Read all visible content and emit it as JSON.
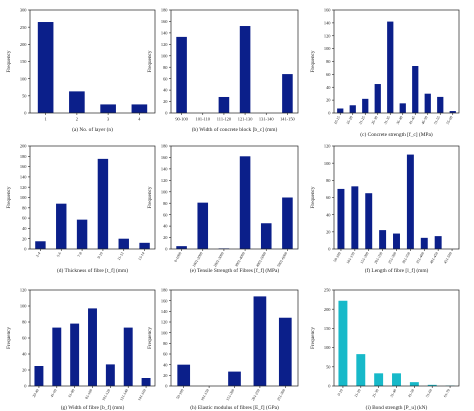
{
  "chart_data": [
    {
      "type": "bar",
      "caption": "(a) No. of layer (n)",
      "ylabel": "Frequency",
      "categories": [
        "1",
        "2",
        "3",
        "4"
      ],
      "values": [
        265,
        63,
        25,
        25
      ],
      "ylim": [
        0,
        300
      ],
      "yticks": [
        0,
        50,
        100,
        150,
        200,
        250,
        300
      ],
      "bar_color": "#0b1f8a",
      "rotate_x_labels": false
    },
    {
      "type": "bar",
      "caption": "(b) Width of concrete block [b_c] (mm)",
      "ylabel": "Frequency",
      "categories": [
        "90-100",
        "101-110",
        "111-120",
        "121-130",
        "131-140",
        "141-150"
      ],
      "values": [
        133,
        0,
        28,
        152,
        0,
        68
      ],
      "ylim": [
        0,
        180
      ],
      "yticks": [
        0,
        20,
        40,
        60,
        80,
        100,
        120,
        140,
        160,
        180
      ],
      "bar_color": "#0b1f8a",
      "rotate_x_labels": false
    },
    {
      "type": "bar",
      "caption": "(c) Concrete strength [f_c] (MPa)",
      "ylabel": "Frequency",
      "categories": [
        "10-15",
        "16-20",
        "21-25",
        "26-30",
        "31-35",
        "36-40",
        "41-45",
        "46-50",
        "51-55",
        "55-60"
      ],
      "values": [
        7,
        12,
        22,
        45,
        142,
        15,
        73,
        30,
        25,
        3
      ],
      "ylim": [
        0,
        160
      ],
      "yticks": [
        0,
        20,
        40,
        60,
        80,
        100,
        120,
        140,
        160
      ],
      "bar_color": "#0b1f8a",
      "rotate_x_labels": true
    },
    {
      "type": "bar",
      "caption": "(d) Thickness of fibre [t_f] (mm)",
      "ylabel": "Frequency",
      "categories": [
        "2-4",
        "5-6",
        "7-8",
        "9-10",
        "11-12",
        "13-14"
      ],
      "values": [
        15,
        88,
        57,
        175,
        20,
        12
      ],
      "ylim": [
        0,
        200
      ],
      "yticks": [
        0,
        20,
        40,
        60,
        80,
        100,
        120,
        140,
        160,
        180,
        200
      ],
      "bar_color": "#0b1f8a",
      "rotate_x_labels": true
    },
    {
      "type": "bar",
      "caption": "(e) Tensile Strength of Fibres [f_f] (MPa)",
      "ylabel": "Frequency",
      "categories": [
        "0-1000",
        "1001-2000",
        "2001-3000",
        "3001-4000",
        "4001-5000",
        "5001-6000"
      ],
      "values": [
        5,
        81,
        1,
        162,
        45,
        90
      ],
      "ylim": [
        0,
        180
      ],
      "yticks": [
        0,
        20,
        40,
        60,
        80,
        100,
        120,
        140,
        160,
        180
      ],
      "bar_color": "#0b1f8a",
      "rotate_x_labels": true
    },
    {
      "type": "bar",
      "caption": "(f) Length of fibre [l_f] (mm)",
      "ylabel": "Frequency",
      "categories": [
        "50-100",
        "101-150",
        "151-200",
        "201-250",
        "251-300",
        "301-350",
        "351-400",
        "401-450",
        "451-500"
      ],
      "values": [
        70,
        73,
        65,
        22,
        18,
        110,
        13,
        15,
        0
      ],
      "ylim": [
        0,
        120
      ],
      "yticks": [
        0,
        20,
        40,
        60,
        80,
        100,
        120
      ],
      "bar_color": "#0b1f8a",
      "rotate_x_labels": true
    },
    {
      "type": "bar",
      "caption": "(g) Width of fibre [b_f] (mm)",
      "ylabel": "Frequency",
      "categories": [
        "20-40",
        "41-60",
        "61-80",
        "81-100",
        "101-120",
        "121-140",
        "141-160"
      ],
      "values": [
        25,
        73,
        78,
        97,
        27,
        73,
        10
      ],
      "ylim": [
        0,
        120
      ],
      "yticks": [
        0,
        20,
        40,
        60,
        80,
        100,
        120
      ],
      "bar_color": "#0b1f8a",
      "rotate_x_labels": true
    },
    {
      "type": "bar",
      "caption": "(h) Elastic modulus of fibres [E_f] (GPa)",
      "ylabel": "Frequency",
      "categories": [
        "50-100",
        "101-150",
        "151-200",
        "201-250",
        "251-300"
      ],
      "values": [
        40,
        0,
        27,
        168,
        128
      ],
      "ylim": [
        0,
        180
      ],
      "yticks": [
        0,
        20,
        40,
        60,
        80,
        100,
        120,
        140,
        160,
        180
      ],
      "bar_color": "#0b1f8a",
      "rotate_x_labels": true
    },
    {
      "type": "bar",
      "caption": "(i) Bond strength [P_u] (kN)",
      "ylabel": "Frequency",
      "categories": [
        "0-10",
        "11-20",
        "21-30",
        "31-40",
        "41-50",
        "51-60",
        "61-70"
      ],
      "values": [
        222,
        83,
        33,
        33,
        10,
        3,
        1
      ],
      "ylim": [
        0,
        250
      ],
      "yticks": [
        0,
        50,
        100,
        150,
        200,
        250
      ],
      "bar_color": "#17b9c9",
      "rotate_x_labels": true
    }
  ]
}
